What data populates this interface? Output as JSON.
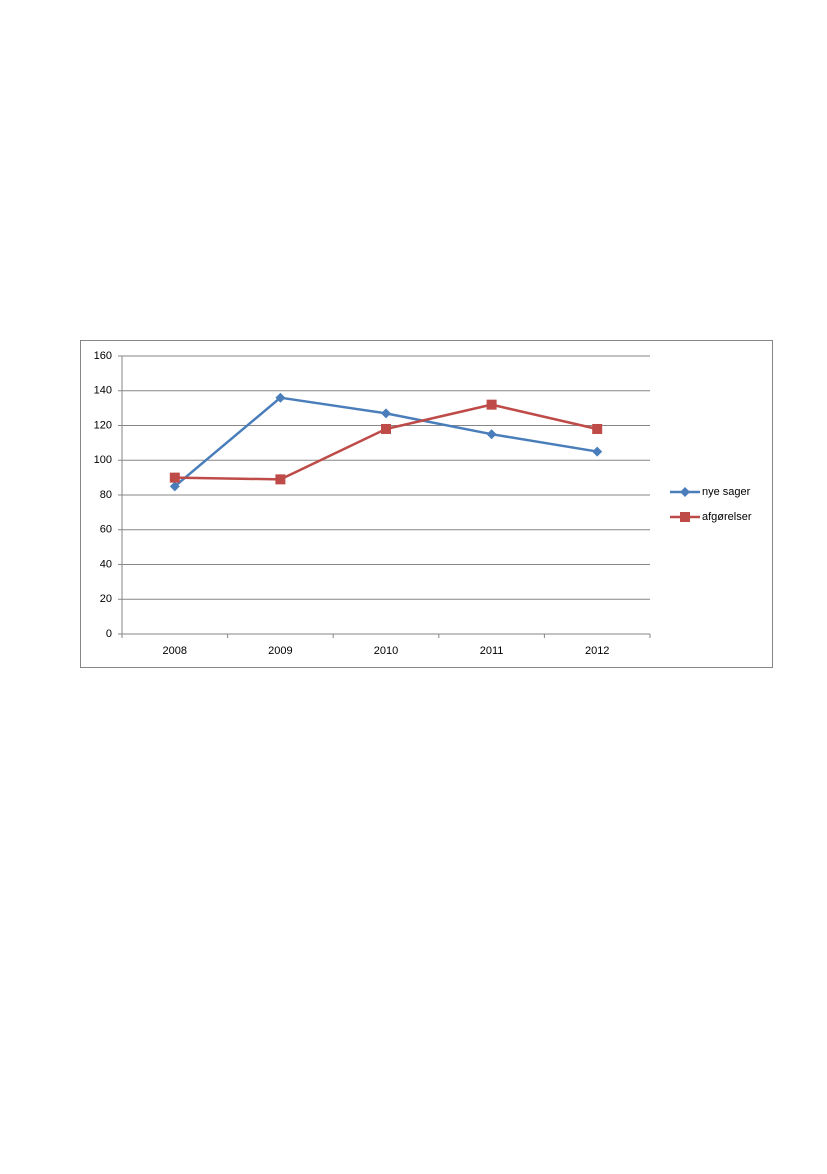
{
  "chart_data": {
    "type": "line",
    "categories": [
      "2008",
      "2009",
      "2010",
      "2011",
      "2012"
    ],
    "series": [
      {
        "name": "nye sager",
        "color": "#4a7ebb",
        "marker": "diamond",
        "values": [
          85,
          136,
          127,
          115,
          105
        ]
      },
      {
        "name": "afgørelser",
        "color": "#be4b48",
        "marker": "square",
        "values": [
          90,
          89,
          118,
          132,
          118
        ]
      }
    ],
    "ylim": [
      0,
      160
    ],
    "yticks": [
      0,
      20,
      40,
      60,
      80,
      100,
      120,
      140,
      160
    ],
    "grid": true,
    "legend": "right"
  }
}
